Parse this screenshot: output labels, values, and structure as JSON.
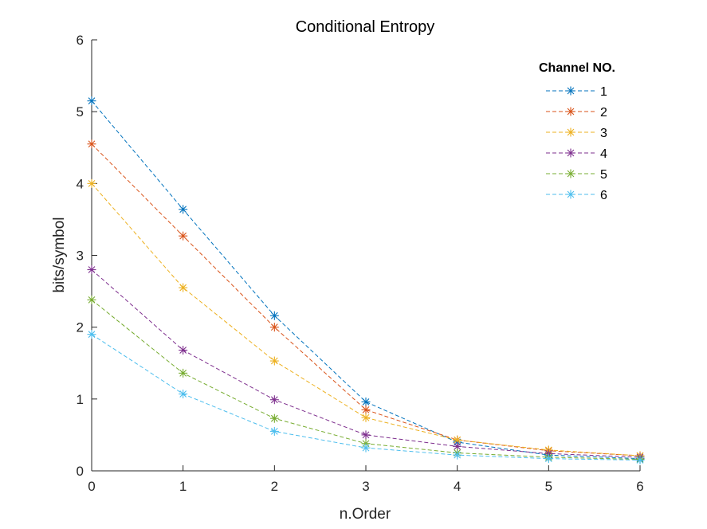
{
  "chart_data": {
    "type": "line",
    "title": "Conditional Entropy",
    "xlabel": "n.Order",
    "ylabel": "bits/symbol",
    "xlim": [
      0,
      6
    ],
    "ylim": [
      0,
      6
    ],
    "xticks": [
      "0",
      "1",
      "2",
      "3",
      "4",
      "5",
      "6"
    ],
    "yticks": [
      "0",
      "1",
      "2",
      "3",
      "4",
      "5",
      "6"
    ],
    "grid": false,
    "legend": {
      "title": "Channel NO.",
      "placement": "top-right"
    },
    "line_style": "dashed",
    "marker": "asterisk",
    "x": [
      0,
      1,
      2,
      3,
      4,
      5,
      6
    ],
    "series": [
      {
        "name": "1",
        "color": "#0072BD",
        "values": [
          5.15,
          3.64,
          2.16,
          0.96,
          0.4,
          0.22,
          0.17
        ]
      },
      {
        "name": "2",
        "color": "#D95319",
        "values": [
          4.55,
          3.27,
          2.0,
          0.85,
          0.43,
          0.28,
          0.21
        ]
      },
      {
        "name": "3",
        "color": "#EDB120",
        "values": [
          4.0,
          2.55,
          1.53,
          0.74,
          0.43,
          0.29,
          0.21
        ]
      },
      {
        "name": "4",
        "color": "#7E2F8E",
        "values": [
          2.8,
          1.68,
          0.99,
          0.5,
          0.34,
          0.24,
          0.19
        ]
      },
      {
        "name": "5",
        "color": "#77AC30",
        "values": [
          2.38,
          1.36,
          0.73,
          0.38,
          0.25,
          0.19,
          0.16
        ]
      },
      {
        "name": "6",
        "color": "#4DBEEE",
        "values": [
          1.9,
          1.07,
          0.55,
          0.32,
          0.22,
          0.17,
          0.15
        ]
      }
    ]
  }
}
